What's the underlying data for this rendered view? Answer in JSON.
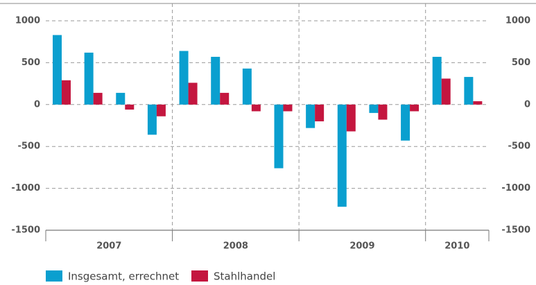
{
  "chart_data": {
    "type": "bar",
    "categories": [
      null,
      null,
      null,
      null,
      null,
      null,
      null,
      null,
      null,
      null,
      null,
      null,
      null,
      null
    ],
    "x_groups": [
      {
        "label": "2007",
        "span": 4
      },
      {
        "label": "2008",
        "span": 4
      },
      {
        "label": "2009",
        "span": 4
      },
      {
        "label": "2010",
        "span": 2
      }
    ],
    "series": [
      {
        "name": "Insgesamt, errechnet",
        "color": "#0a9fcf",
        "values": [
          830,
          620,
          140,
          -360,
          640,
          570,
          430,
          -760,
          -280,
          -1220,
          -100,
          -430,
          570,
          330
        ]
      },
      {
        "name": "Stahlhandel",
        "color": "#c4163f",
        "values": [
          290,
          140,
          -60,
          -140,
          260,
          140,
          -80,
          -80,
          -200,
          -320,
          -180,
          -80,
          310,
          40
        ]
      }
    ],
    "ylim": [
      -1500,
      1000
    ],
    "yticks": [
      -1500,
      -1000,
      -500,
      0,
      500,
      1000
    ],
    "y2lim": [
      -1500,
      1000
    ],
    "y2ticks": [
      -1500,
      -1000,
      -500,
      0,
      500,
      1000
    ],
    "grid": true
  }
}
